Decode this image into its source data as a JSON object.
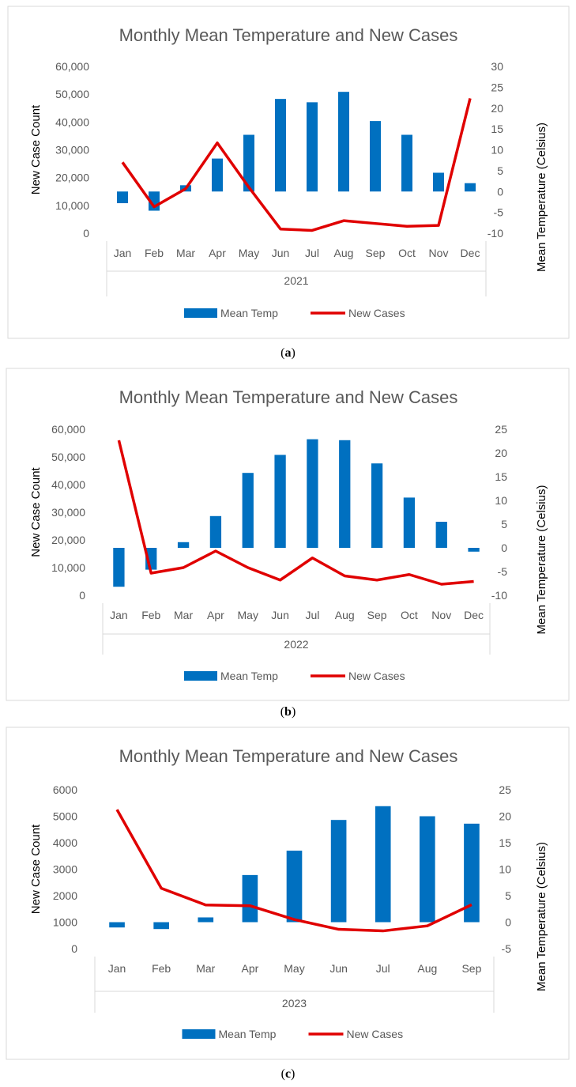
{
  "charts": [
    {
      "chart_data": {
        "type": "bar+line",
        "title": "Monthly Mean Temperature and New Cases",
        "categories": [
          "Jan",
          "Feb",
          "Mar",
          "Apr",
          "May",
          "Jun",
          "Jul",
          "Aug",
          "Sep",
          "Oct",
          "Nov",
          "Dec"
        ],
        "year_label": "2021",
        "ylabel_left": "New Case Count",
        "ylabel_right": "Mean Temperature (Celsius)",
        "left_ticks": [
          "0",
          "10,000",
          "20,000",
          "30,000",
          "40,000",
          "50,000",
          "60,000"
        ],
        "ylim_left": [
          0,
          60000
        ],
        "right_ticks": [
          "-10",
          "-5",
          "0",
          "5",
          "10",
          "15",
          "20",
          "25",
          "30"
        ],
        "ylim_right": [
          -10,
          30
        ],
        "series": [
          {
            "name": "Mean Temp",
            "axis": "right",
            "type": "bar",
            "color": "#0070C0",
            "values": [
              -2.8,
              -4.6,
              1.5,
              7.9,
              13.6,
              22.2,
              21.4,
              23.9,
              16.9,
              13.6,
              4.5,
              2.0
            ]
          },
          {
            "name": "New Cases",
            "axis": "left",
            "type": "line",
            "color": "#E00000",
            "values": [
              25500,
              9500,
              16000,
              32500,
              16500,
              1500,
              1000,
              4500,
              3500,
              2500,
              2800,
              48500
            ]
          }
        ]
      },
      "caption": "(a)"
    },
    {
      "chart_data": {
        "type": "bar+line",
        "title": "Monthly Mean Temperature and New Cases",
        "categories": [
          "Jan",
          "Feb",
          "Mar",
          "Apr",
          "May",
          "Jun",
          "Jul",
          "Aug",
          "Sep",
          "Oct",
          "Nov",
          "Dec"
        ],
        "year_label": "2022",
        "ylabel_left": "New Case Count",
        "ylabel_right": "Mean Temperature (Celsius)",
        "left_ticks": [
          "0",
          "10,000",
          "20,000",
          "30,000",
          "40,000",
          "50,000",
          "60,000"
        ],
        "ylim_left": [
          0,
          60000
        ],
        "right_ticks": [
          "-10",
          "-5",
          "0",
          "5",
          "10",
          "15",
          "20",
          "25"
        ],
        "ylim_right": [
          -10,
          25
        ],
        "series": [
          {
            "name": "Mean Temp",
            "axis": "right",
            "type": "bar",
            "color": "#0070C0",
            "values": [
              -8.2,
              -4.6,
              1.2,
              6.7,
              15.8,
              19.6,
              22.9,
              22.7,
              17.8,
              10.6,
              5.5,
              -0.8
            ]
          },
          {
            "name": "New Cases",
            "axis": "left",
            "type": "line",
            "color": "#E00000",
            "values": [
              56000,
              8000,
              10000,
              16000,
              10000,
              5500,
              13500,
              7000,
              5500,
              7500,
              4000,
              5000
            ]
          }
        ]
      },
      "caption": "(b)"
    },
    {
      "chart_data": {
        "type": "bar+line",
        "title": "Monthly Mean Temperature and New Cases",
        "categories": [
          "Jan",
          "Feb",
          "Mar",
          "Apr",
          "May",
          "Jun",
          "Jul",
          "Aug",
          "Sep"
        ],
        "year_label": "2023",
        "ylabel_left": "New Case Count",
        "ylabel_right": "Mean Temperature (Celsius)",
        "left_ticks": [
          "0",
          "1000",
          "2000",
          "3000",
          "4000",
          "5000",
          "6000"
        ],
        "ylim_left": [
          0,
          6000
        ],
        "right_ticks": [
          "-5",
          "0",
          "5",
          "10",
          "15",
          "20",
          "25"
        ],
        "ylim_right": [
          -5,
          25
        ],
        "series": [
          {
            "name": "Mean Temp",
            "axis": "right",
            "type": "bar",
            "color": "#0070C0",
            "values": [
              -1.0,
              -1.3,
              0.9,
              8.9,
              13.5,
              19.3,
              21.9,
              20.0,
              18.6
            ]
          },
          {
            "name": "New Cases",
            "axis": "left",
            "type": "line",
            "color": "#E00000",
            "values": [
              5250,
              2280,
              1650,
              1620,
              1100,
              730,
              670,
              860,
              1660
            ]
          }
        ]
      },
      "caption": "(c)"
    }
  ]
}
